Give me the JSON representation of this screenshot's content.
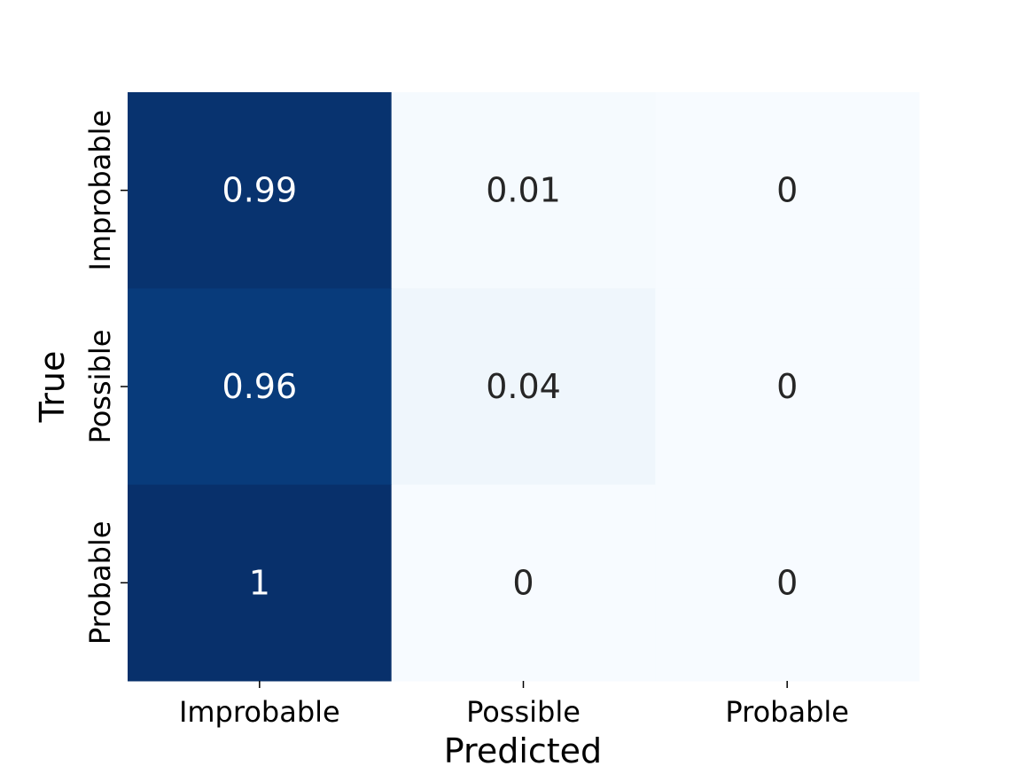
{
  "chart_data": {
    "type": "heatmap",
    "title": "",
    "xlabel": "Predicted",
    "ylabel": "True",
    "x_categories": [
      "Improbable",
      "Possible",
      "Probable"
    ],
    "y_categories": [
      "Improbable",
      "Possible",
      "Probable"
    ],
    "values": [
      [
        0.99,
        0.01,
        0
      ],
      [
        0.96,
        0.04,
        0
      ],
      [
        1,
        0,
        0
      ]
    ],
    "cell_labels": [
      [
        "0.99",
        "0.01",
        "0"
      ],
      [
        "0.96",
        "0.04",
        "0"
      ],
      [
        "1",
        "0",
        "0"
      ]
    ],
    "colormap": "Blues",
    "value_range": [
      0,
      1
    ],
    "colorbar": false,
    "colors": {
      "low": "#f7fbff",
      "high": "#08306b",
      "dark_text": "#262626",
      "light_text": "#ffffff"
    }
  }
}
